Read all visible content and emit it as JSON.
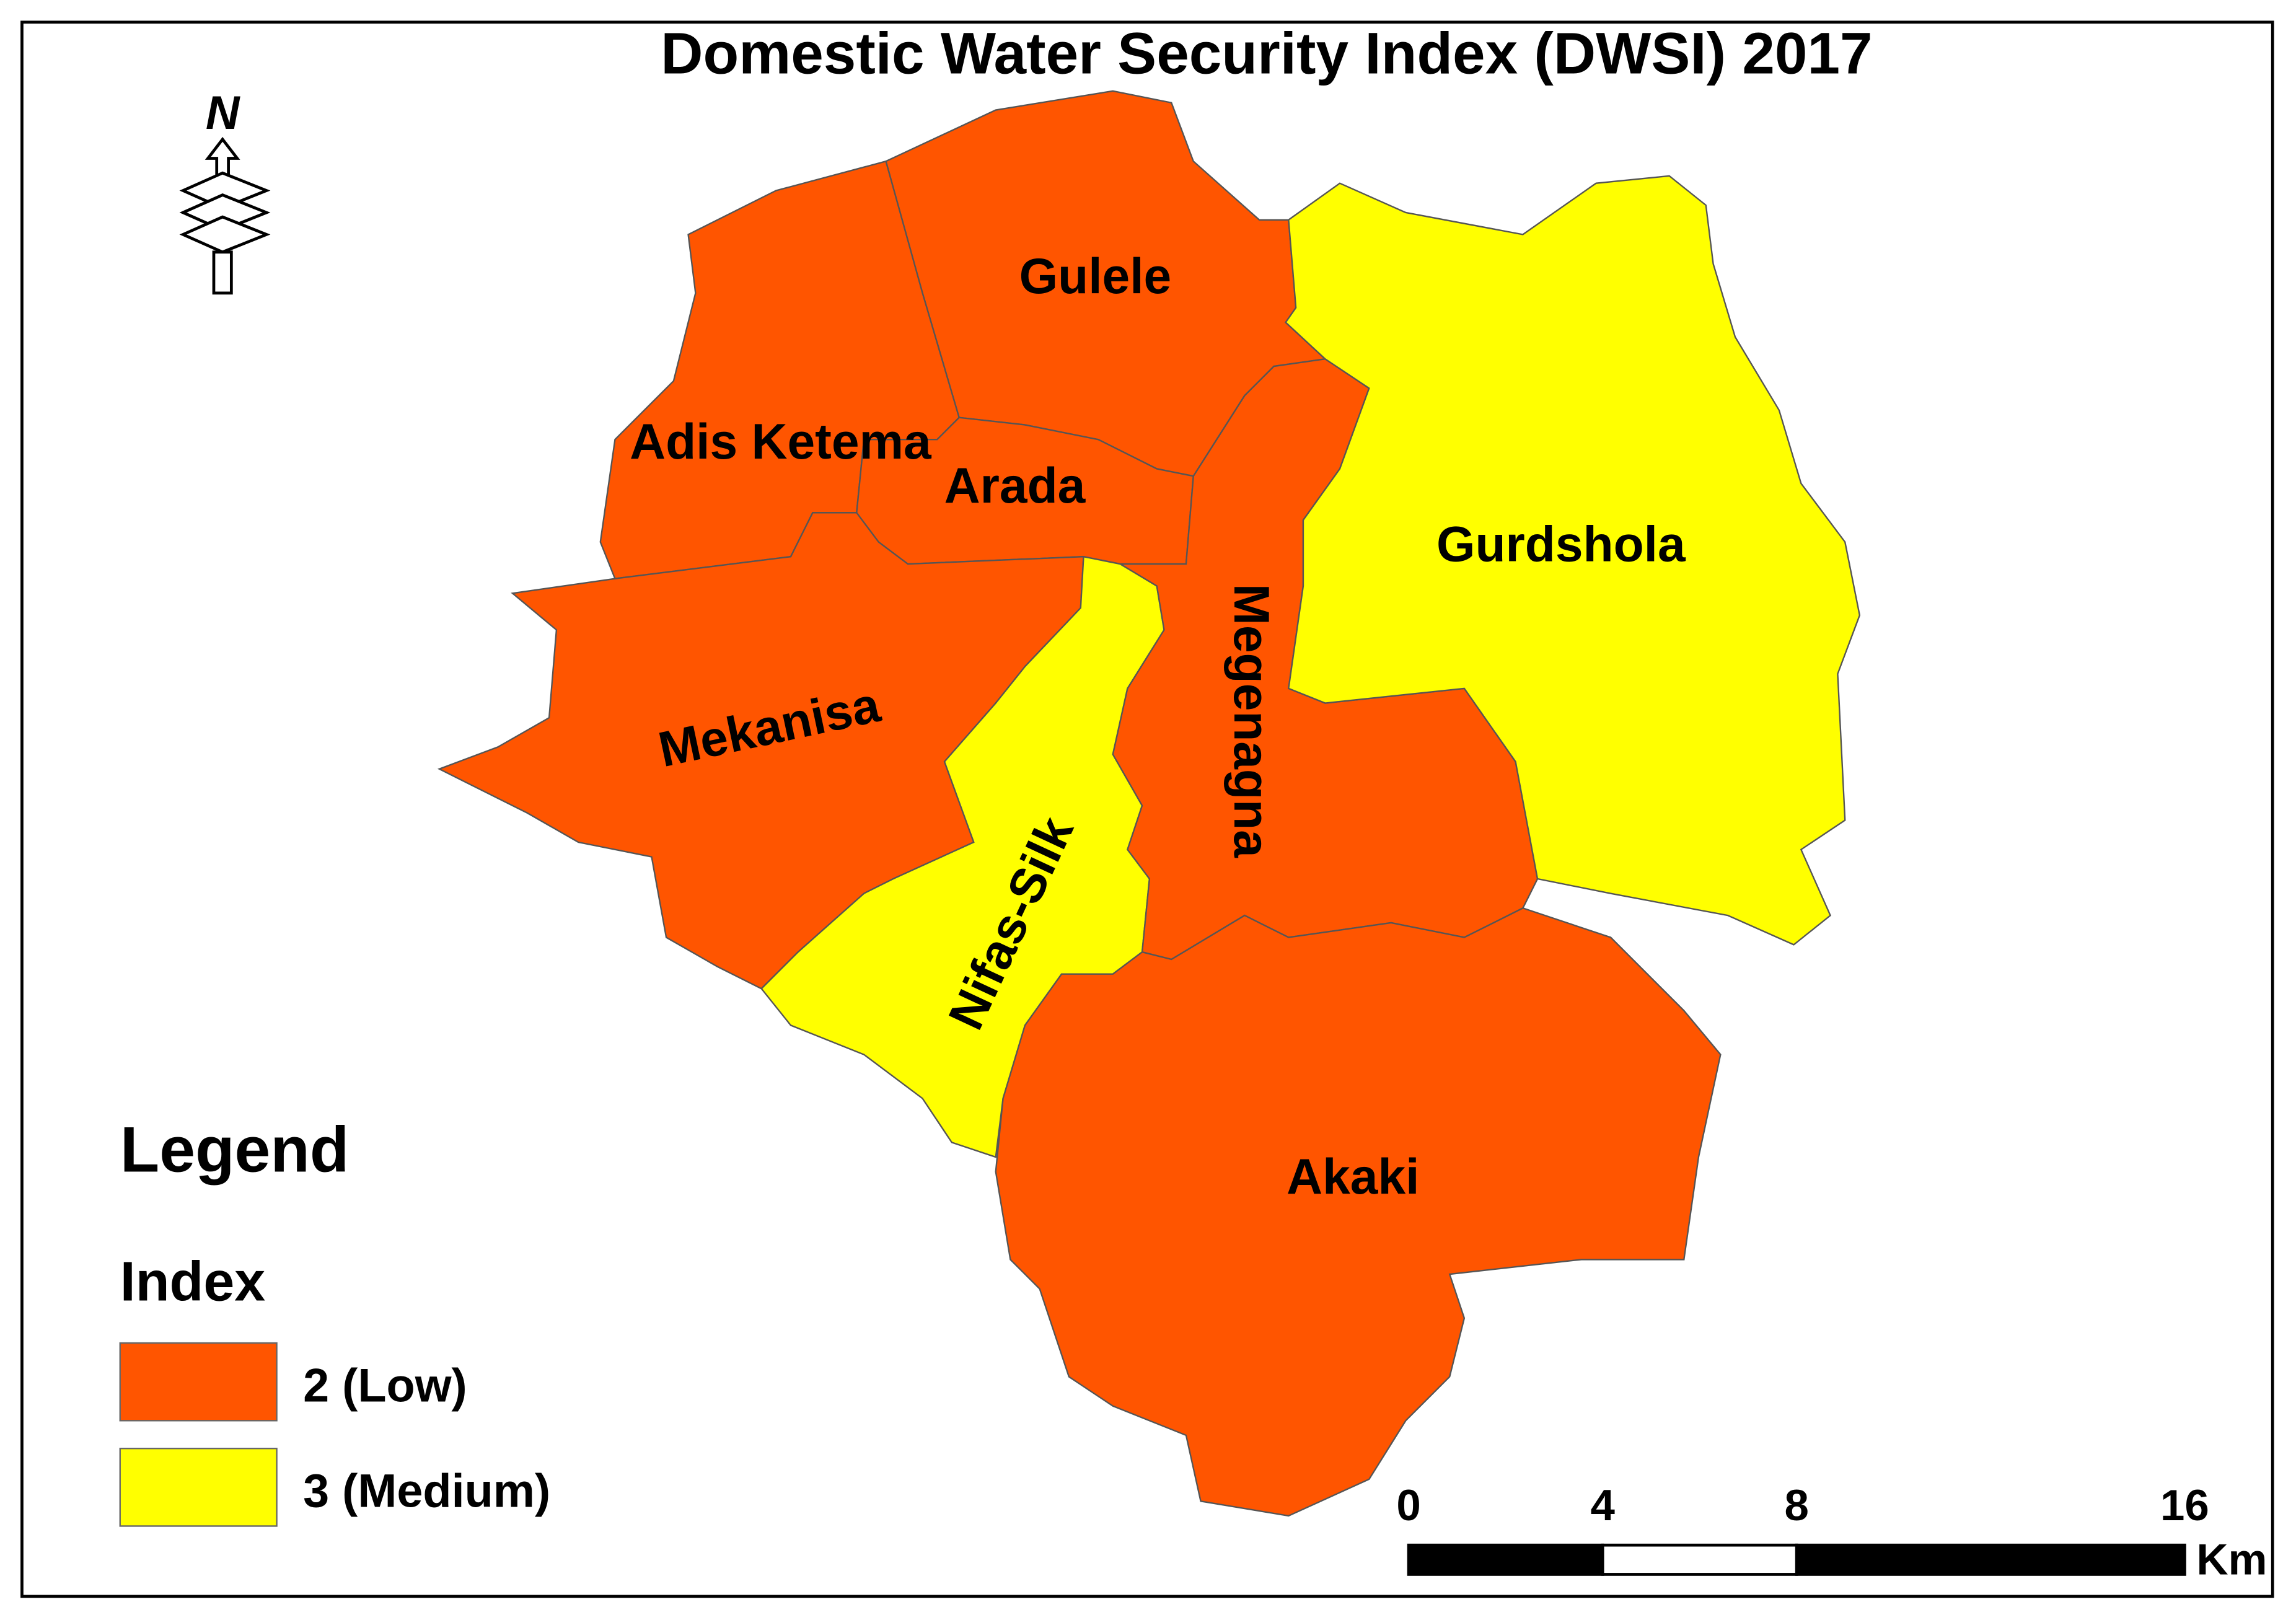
{
  "title": "Domestic Water Security Index (DWSI) 2017",
  "north_label": "N",
  "districts": [
    {
      "name": "Gulele",
      "index": 2
    },
    {
      "name": "Adis Ketema",
      "index": 2
    },
    {
      "name": "Arada",
      "index": 2
    },
    {
      "name": "Mekanisa",
      "index": 2
    },
    {
      "name": "Nifas-Silk",
      "index": 3
    },
    {
      "name": "Megenagna",
      "index": 2
    },
    {
      "name": "Gurdshola",
      "index": 3
    },
    {
      "name": "Akaki",
      "index": 2
    }
  ],
  "legend": {
    "title": "Legend",
    "subtitle": "Index",
    "items": [
      {
        "value": 2,
        "label": "2 (Low)",
        "color": "#ff5500"
      },
      {
        "value": 3,
        "label": "3 (Medium)",
        "color": "#ffff00"
      }
    ]
  },
  "scale_bar": {
    "ticks": [
      0,
      4,
      8,
      16
    ],
    "unit": "Km"
  }
}
